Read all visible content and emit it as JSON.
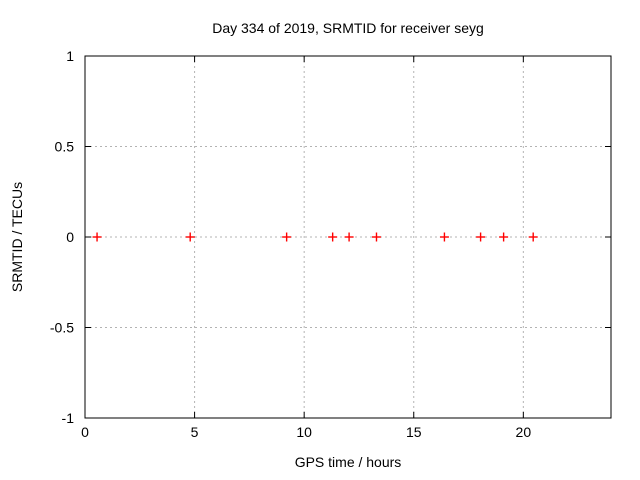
{
  "page": {
    "background": "#ffffff"
  },
  "chart_data": {
    "type": "scatter",
    "title": "Day 334 of 2019, SRMTID for receiver seyg",
    "xlabel": "GPS time / hours",
    "ylabel": "SRMTID / TECUs",
    "xlim": [
      0,
      24
    ],
    "ylim": [
      -1,
      1
    ],
    "xticks": {
      "values": [
        0,
        5,
        10,
        15,
        20
      ],
      "labels": [
        "0",
        "5",
        "10",
        "15",
        "20"
      ]
    },
    "yticks": {
      "values": [
        -1,
        -0.5,
        0,
        0.5,
        1
      ],
      "labels": [
        "-1",
        "-0.5",
        "0",
        "0.5",
        "1"
      ]
    },
    "grid": true,
    "grid_style": "dashed",
    "ticks_mirrored_inward": true,
    "legend": "none",
    "series": [
      {
        "name": "SRMTID",
        "marker": "plus",
        "color": "#ff0000",
        "x": [
          0.55,
          4.8,
          9.2,
          11.3,
          12.05,
          13.3,
          16.4,
          18.05,
          19.1,
          20.45
        ],
        "y": [
          0,
          0,
          0,
          0,
          0,
          0,
          0,
          0,
          0,
          0
        ]
      }
    ],
    "colors": {
      "border": "#000000",
      "grid": "#b3b3b3",
      "text": "#000000",
      "marker": "#ff0000",
      "background": "#ffffff"
    }
  }
}
